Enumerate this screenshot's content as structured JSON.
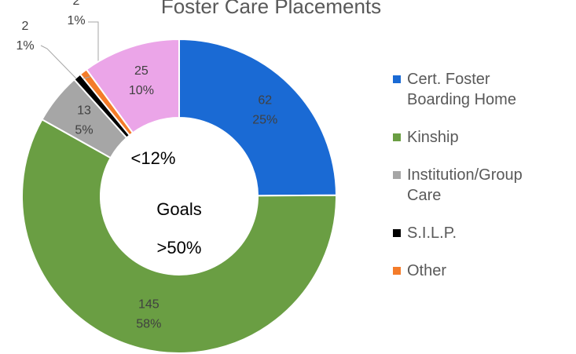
{
  "chart_data": {
    "type": "donut",
    "title": "Foster Care Placements",
    "categories": [
      "Cert. Foster Boarding Home",
      "Kinship",
      "Institution/Group Care",
      "S.I.L.P.",
      "Other",
      null
    ],
    "values": [
      62,
      145,
      13,
      2,
      2,
      25
    ],
    "percent_labels": [
      "25%",
      "58%",
      "5%",
      "1%",
      "1%",
      "10%"
    ],
    "colors": [
      "#1a6ad4",
      "#6a9e43",
      "#a6a6a6",
      "#000000",
      "#f47c2a",
      "#eba5e8"
    ],
    "center_labels": [
      "<12%",
      "Goals",
      ">50%"
    ],
    "legend": "right"
  }
}
